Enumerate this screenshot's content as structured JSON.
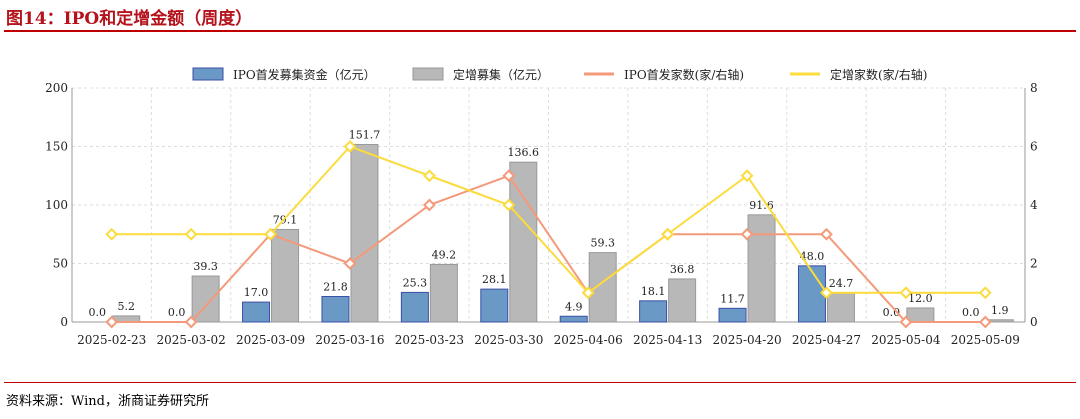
{
  "title": "图14：IPO和定增金额（周度）",
  "source": "资料来源：Wind，浙商证券研究所",
  "chart_data": {
    "type": "bar+line",
    "categories": [
      "2025-02-23",
      "2025-03-02",
      "2025-03-09",
      "2025-03-16",
      "2025-03-23",
      "2025-03-30",
      "2025-04-06",
      "2025-04-13",
      "2025-04-20",
      "2025-04-27",
      "2025-05-04",
      "2025-05-09"
    ],
    "ylim": [
      0,
      200
    ],
    "yticks": [
      0,
      50,
      100,
      150,
      200
    ],
    "y2lim": [
      0,
      8
    ],
    "y2ticks": [
      0,
      2,
      4,
      6,
      8
    ],
    "legend_position": "top-center",
    "series": [
      {
        "name": "IPO首发募集资金（亿元）",
        "type": "bar",
        "axis": "left",
        "color": "#6a99c6",
        "values": [
          0.0,
          0.0,
          17.0,
          21.8,
          25.3,
          28.1,
          4.9,
          18.1,
          11.7,
          48.0,
          0.0,
          0.0
        ]
      },
      {
        "name": "定增募集（亿元）",
        "type": "bar",
        "axis": "left",
        "color": "#b8b8b8",
        "values": [
          5.2,
          39.3,
          79.1,
          151.7,
          49.2,
          136.6,
          59.3,
          36.8,
          91.6,
          24.7,
          12.0,
          1.9
        ]
      },
      {
        "name": "IPO首发家数(家/右轴)",
        "type": "line",
        "axis": "right",
        "color": "#f4997a",
        "values": [
          0,
          0,
          3,
          2,
          4,
          5,
          1,
          3,
          3,
          3,
          0,
          0
        ]
      },
      {
        "name": "定增家数(家/右轴)",
        "type": "line",
        "axis": "right",
        "color": "#fbdc3c",
        "values": [
          3,
          3,
          3,
          6,
          5,
          4,
          1,
          3,
          5,
          1,
          1,
          1
        ]
      }
    ]
  }
}
